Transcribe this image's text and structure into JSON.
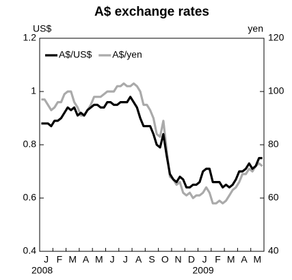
{
  "chart_data": {
    "type": "line",
    "title": "A$ exchange rates",
    "y_label": "US$",
    "y2_label": "yen",
    "categories": [
      null,
      "J",
      null,
      null,
      null,
      "F",
      null,
      null,
      null,
      "M",
      null,
      null,
      null,
      "A",
      null,
      null,
      null,
      "M",
      null,
      null,
      null,
      "J",
      null,
      null,
      null,
      "J",
      null,
      null,
      null,
      "A",
      null,
      null,
      null,
      "S",
      null,
      null,
      null,
      "O",
      null,
      null,
      null,
      "N",
      null,
      null,
      null,
      "D",
      null,
      null,
      null,
      "J",
      null,
      null,
      null,
      "F",
      null,
      null,
      null,
      "M",
      null,
      null,
      null,
      "A",
      null,
      null,
      null,
      "M",
      null,
      null
    ],
    "years": [
      "2008",
      "2009"
    ],
    "series": [
      {
        "name": "A$/US$",
        "color": "#000000",
        "axis": "y",
        "values": [
          0.88,
          0.88,
          0.88,
          0.87,
          0.89,
          0.89,
          0.9,
          0.92,
          0.94,
          0.93,
          0.94,
          0.91,
          0.92,
          0.91,
          0.93,
          0.94,
          0.95,
          0.95,
          0.94,
          0.94,
          0.96,
          0.96,
          0.95,
          0.95,
          0.96,
          0.96,
          0.96,
          0.98,
          0.96,
          0.94,
          0.9,
          0.87,
          0.87,
          0.87,
          0.84,
          0.8,
          0.79,
          0.84,
          0.76,
          0.69,
          0.67,
          0.66,
          0.68,
          0.67,
          0.64,
          0.64,
          0.65,
          0.65,
          0.66,
          0.7,
          0.71,
          0.71,
          0.66,
          0.66,
          0.66,
          0.64,
          0.65,
          0.64,
          0.65,
          0.67,
          0.7,
          0.7,
          0.71,
          0.73,
          0.71,
          0.72,
          0.75,
          0.75
        ]
      },
      {
        "name": "A$/yen",
        "color": "#aaaaaa",
        "axis": "y2",
        "values": [
          97,
          97,
          95,
          93,
          94,
          96,
          96,
          99,
          100,
          100,
          96,
          94,
          91,
          91,
          93,
          95,
          98,
          98,
          98,
          99,
          100,
          100,
          100,
          102,
          102,
          103,
          102,
          102,
          103,
          102,
          100,
          95,
          95,
          93,
          90,
          84,
          83,
          89,
          78,
          68,
          67,
          65,
          66,
          62,
          61,
          62,
          60,
          61,
          61,
          62,
          64,
          62,
          58,
          58,
          59,
          58,
          59,
          61,
          63,
          64,
          66,
          69,
          69,
          71,
          70,
          72,
          73,
          72
        ]
      }
    ],
    "ylim": [
      0.4,
      1.2
    ],
    "yticks": [
      0.4,
      0.6,
      0.8,
      1,
      1.2
    ],
    "y2lim": [
      40,
      120
    ],
    "y2ticks": [
      40,
      60,
      80,
      100,
      120
    ],
    "legend": "upper left"
  }
}
